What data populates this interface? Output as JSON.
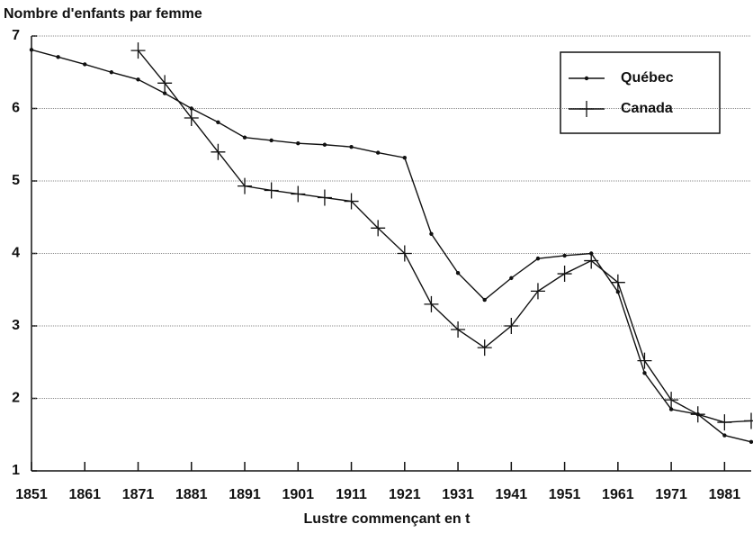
{
  "chart_data": {
    "type": "line",
    "title": "Nombre d'enfants par femme",
    "x_label": "Lustre commençant en t",
    "x": [
      1851,
      1856,
      1861,
      1866,
      1871,
      1876,
      1881,
      1886,
      1891,
      1896,
      1901,
      1906,
      1911,
      1916,
      1921,
      1926,
      1931,
      1936,
      1941,
      1946,
      1951,
      1956,
      1961,
      1966,
      1971,
      1976,
      1981,
      1986
    ],
    "series": [
      {
        "name": "Québec",
        "color": "#111111",
        "marker": "dot",
        "values": [
          6.81,
          6.71,
          6.61,
          6.5,
          6.4,
          6.21,
          6.0,
          5.81,
          5.6,
          5.56,
          5.52,
          5.5,
          5.47,
          5.39,
          5.32,
          4.27,
          3.73,
          3.36,
          3.66,
          3.93,
          3.97,
          4.0,
          3.47,
          2.35,
          1.85,
          1.78,
          1.49,
          1.4
        ]
      },
      {
        "name": "Canada",
        "color": "#111111",
        "marker": "plus",
        "values": [
          null,
          null,
          null,
          null,
          6.8,
          6.35,
          5.87,
          5.4,
          4.93,
          4.87,
          4.82,
          4.77,
          4.72,
          4.35,
          4.0,
          3.3,
          2.95,
          2.7,
          3.0,
          3.48,
          3.72,
          3.9,
          3.6,
          2.52,
          1.98,
          1.78,
          1.67,
          1.69
        ]
      }
    ],
    "xlim": [
      1851,
      1986
    ],
    "xticks": [
      1851,
      1861,
      1871,
      1881,
      1891,
      1901,
      1911,
      1921,
      1931,
      1941,
      1951,
      1961,
      1971,
      1981
    ],
    "ylim": [
      1,
      7
    ],
    "yticks": [
      1,
      2,
      3,
      4,
      5,
      6,
      7
    ],
    "grid": true,
    "legend": "top-right"
  }
}
